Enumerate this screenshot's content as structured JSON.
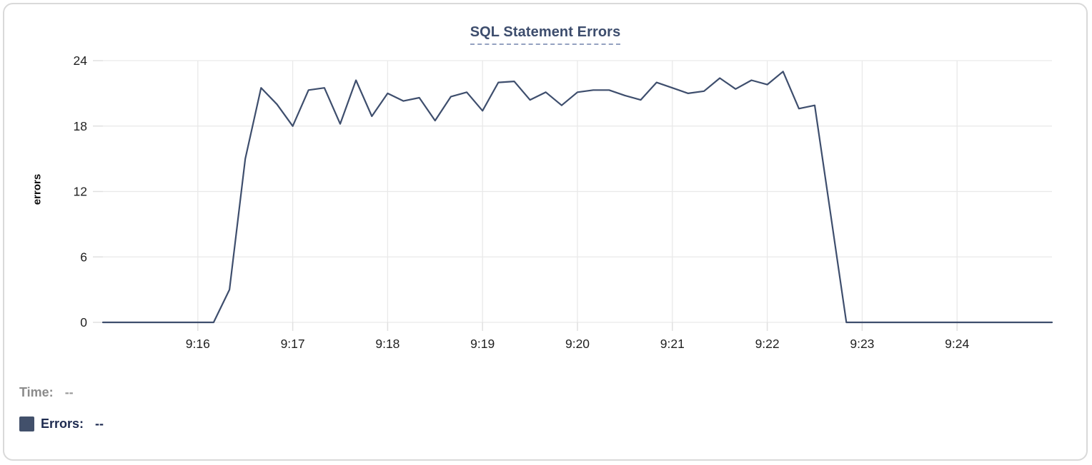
{
  "chart_data": {
    "type": "line",
    "title": "SQL Statement Errors",
    "ylabel": "errors",
    "ylim": [
      0,
      24
    ],
    "y_ticks": [
      0,
      6,
      12,
      18,
      24
    ],
    "x_tick_labels": [
      "9:16",
      "9:17",
      "9:18",
      "9:19",
      "9:20",
      "9:21",
      "9:22",
      "9:23",
      "9:24"
    ],
    "grid": true,
    "legend_position": "bottom-left",
    "x": [
      "9:15:00",
      "9:15:10",
      "9:15:20",
      "9:15:30",
      "9:15:40",
      "9:15:50",
      "9:16:00",
      "9:16:10",
      "9:16:20",
      "9:16:30",
      "9:16:40",
      "9:16:50",
      "9:17:00",
      "9:17:10",
      "9:17:20",
      "9:17:30",
      "9:17:40",
      "9:17:50",
      "9:18:00",
      "9:18:10",
      "9:18:20",
      "9:18:30",
      "9:18:40",
      "9:18:50",
      "9:19:00",
      "9:19:10",
      "9:19:20",
      "9:19:30",
      "9:19:40",
      "9:19:50",
      "9:20:00",
      "9:20:10",
      "9:20:20",
      "9:20:30",
      "9:20:40",
      "9:20:50",
      "9:21:00",
      "9:21:10",
      "9:21:20",
      "9:21:30",
      "9:21:40",
      "9:21:50",
      "9:22:00",
      "9:22:10",
      "9:22:20",
      "9:22:30",
      "9:22:40",
      "9:22:50",
      "9:23:00",
      "9:23:10",
      "9:23:20",
      "9:23:30",
      "9:23:40",
      "9:23:50",
      "9:24:00",
      "9:24:10",
      "9:24:20",
      "9:24:30",
      "9:24:40",
      "9:24:50",
      "9:25:00"
    ],
    "series": [
      {
        "name": "Errors",
        "color": "#3e4e6d",
        "values": [
          0,
          0,
          0,
          0,
          0,
          0,
          0,
          0,
          3,
          15,
          21.5,
          20,
          18,
          21.3,
          21.5,
          18.2,
          22.2,
          18.9,
          21,
          20.3,
          20.6,
          18.5,
          20.7,
          21.1,
          19.4,
          22,
          22.1,
          20.4,
          21.1,
          19.9,
          21.1,
          21.3,
          21.3,
          20.8,
          20.4,
          22,
          21.5,
          21,
          21.2,
          22.4,
          21.4,
          22.2,
          21.8,
          23,
          19.6,
          19.9,
          10,
          0,
          0,
          0,
          0,
          0,
          0,
          0,
          0,
          0,
          0,
          0,
          0,
          0,
          0
        ]
      }
    ]
  },
  "tooltip_readout": {
    "time_label": "Time:",
    "time_value": "--",
    "errors_label": "Errors:",
    "errors_value": "--"
  },
  "colors": {
    "line": "#3e4e6d",
    "swatch": "#42506b",
    "title": "#3d4d6d",
    "title_underline": "#93a1c0",
    "grid": "#e9e9e9",
    "tick_mark": "#e0e0e0",
    "tick_text": "#1f1f1f",
    "time_text": "#8b8b8b",
    "errors_text": "#1e2b50",
    "card_border": "#d9d9d9"
  }
}
